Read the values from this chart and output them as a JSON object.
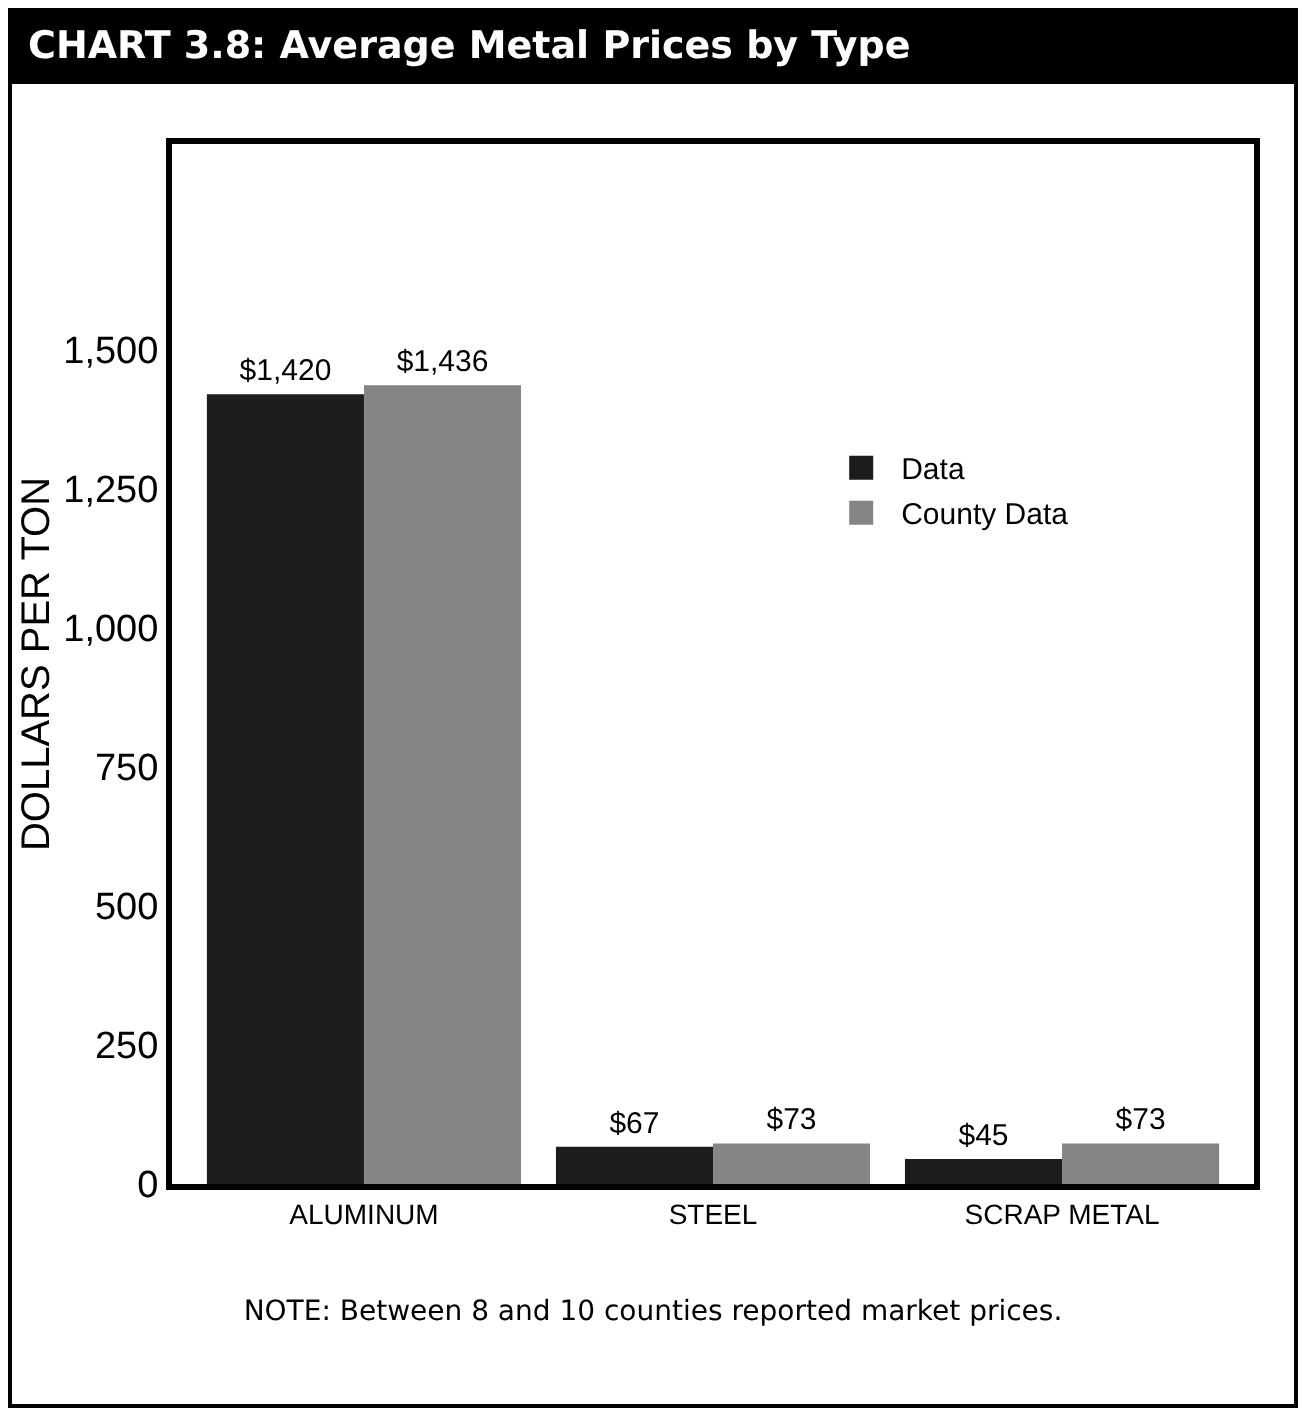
{
  "chart_data": {
    "type": "bar",
    "title": "CHART 3.8: Average Metal Prices by Type",
    "ylabel": "DOLLARS PER TON",
    "categories": [
      "ALUMINUM",
      "STEEL",
      "SCRAP METAL"
    ],
    "series": [
      {
        "name": "Data",
        "color": "#1c1c1c",
        "values": [
          1420,
          67,
          45
        ],
        "value_labels": [
          "$1,420",
          "$67",
          "$45"
        ]
      },
      {
        "name": "County Data",
        "color": "#858585",
        "values": [
          1436,
          73,
          73
        ],
        "value_labels": [
          "$1,436",
          "$73",
          "$73"
        ]
      }
    ],
    "ylim": [
      0,
      1870
    ],
    "yticks": [
      {
        "value": 0,
        "label": "0"
      },
      {
        "value": 250,
        "label": "250"
      },
      {
        "value": 500,
        "label": "500"
      },
      {
        "value": 750,
        "label": "750"
      },
      {
        "value": 1000,
        "label": "1,000"
      },
      {
        "value": 1250,
        "label": "1,250"
      },
      {
        "value": 1500,
        "label": "1,500"
      }
    ],
    "grid": false,
    "legend": "top right",
    "annotations": [
      "NOTE: Between 8 and 10 counties reported market prices."
    ]
  }
}
